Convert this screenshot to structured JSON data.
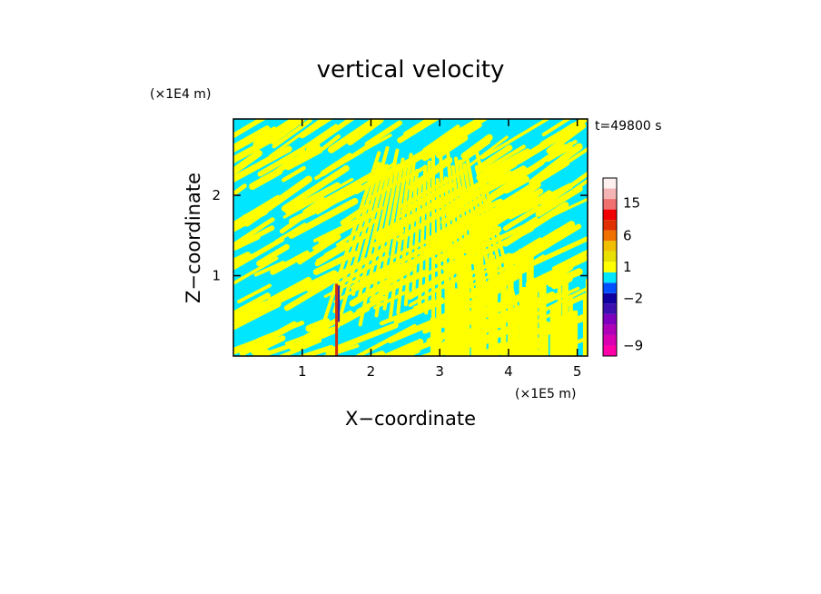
{
  "chart_data": {
    "type": "heatmap",
    "title": "vertical velocity",
    "xlabel": "X−coordinate",
    "ylabel": "Z−coordinate",
    "x_unit": "(×1E5 m)",
    "z_unit": "(×1E4 m)",
    "time_label": "t=49800 s",
    "xlim": [
      0,
      5.15
    ],
    "ylim": [
      0,
      2.95
    ],
    "x_ticks": [
      {
        "value": 1,
        "label": "1"
      },
      {
        "value": 2,
        "label": "2"
      },
      {
        "value": 3,
        "label": "3"
      },
      {
        "value": 4,
        "label": "4"
      },
      {
        "value": 5,
        "label": "5"
      }
    ],
    "y_ticks": [
      {
        "value": 1,
        "label": "1"
      },
      {
        "value": 2,
        "label": "2"
      }
    ],
    "field_colors": {
      "positive": "#ffff00",
      "negative": "#00e6ff"
    },
    "anomaly": {
      "x": 1.5,
      "z_top": 0.9,
      "color_up": "#d03010",
      "color_down": "#3a1aa0"
    },
    "colorbar": {
      "colors": [
        "#ff00a8",
        "#d800b0",
        "#b000b8",
        "#8000c0",
        "#3c10b0",
        "#1000a0",
        "#0050ff",
        "#00e6ff",
        "#ffff00",
        "#e8e000",
        "#f0c000",
        "#f07000",
        "#e03000",
        "#f00000",
        "#f07070",
        "#f4b4b4",
        "#fff0f0"
      ],
      "labels": [
        {
          "value": -9,
          "label": "−9",
          "segment": 1
        },
        {
          "value": -2,
          "label": "−2",
          "segment": 5.5
        },
        {
          "value": 1,
          "label": "1",
          "segment": 8.5
        },
        {
          "value": 6,
          "label": "6",
          "segment": 11.5
        },
        {
          "value": 15,
          "label": "15",
          "segment": 14.6
        }
      ]
    }
  }
}
